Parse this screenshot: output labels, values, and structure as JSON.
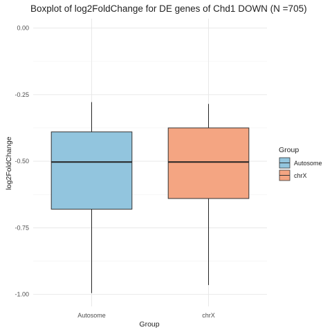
{
  "chart_data": {
    "type": "boxplot",
    "title": "Boxplot of log2FoldChange for DE genes of Chd1 DOWN (N =705)",
    "xlabel": "Group",
    "ylabel": "log2FoldChange",
    "categories": [
      "Autosome",
      "chrX"
    ],
    "ylim": [
      -1.045,
      0.035
    ],
    "yticks": [
      0.0,
      -0.25,
      -0.5,
      -0.75,
      -1.0
    ],
    "ytick_labels": [
      "0.00",
      "-0.25",
      "-0.50",
      "-0.75",
      "-1.00"
    ],
    "series": [
      {
        "name": "Autosome",
        "color": "#92c5de",
        "min": -0.995,
        "q1": -0.68,
        "median": -0.503,
        "q3": -0.39,
        "max": -0.278
      },
      {
        "name": "chrX",
        "color": "#f4a582",
        "min": -0.965,
        "q1": -0.64,
        "median": -0.503,
        "q3": -0.375,
        "max": -0.285
      }
    ],
    "legend": {
      "title": "Group",
      "position": "right",
      "items": [
        "Autosome",
        "chrX"
      ]
    },
    "grid": true
  }
}
